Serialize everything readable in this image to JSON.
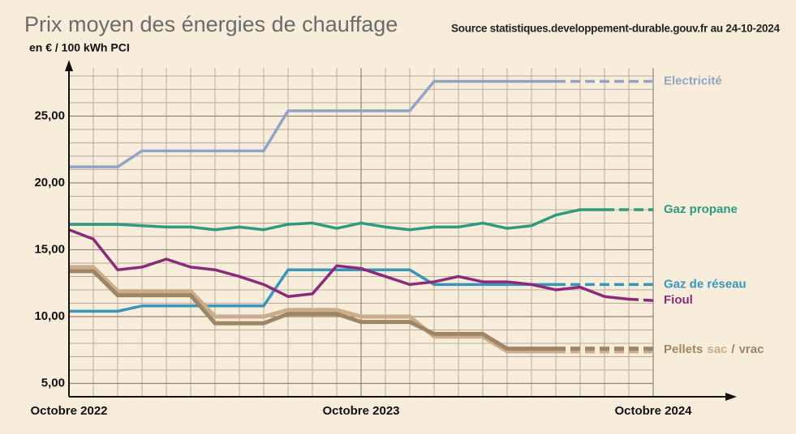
{
  "chart_data": {
    "type": "line",
    "title": "Prix moyen des énergies de chauffage",
    "subtitle": "Source statistiques.developpement-durable.gouv.fr au 24-10-2024",
    "y_label": "en € / 100 kWh PCI",
    "annotations": [
      "Pellets",
      "/"
    ],
    "x": [
      0,
      1,
      2,
      3,
      4,
      5,
      6,
      7,
      8,
      9,
      10,
      11,
      12,
      13,
      14,
      15,
      16,
      17,
      18,
      19,
      20,
      21,
      22,
      23,
      24
    ],
    "xlim": [
      0,
      24
    ],
    "xticks": [
      {
        "value": 0,
        "label": "Octobre 2022"
      },
      {
        "value": 12,
        "label": "Octobre 2023"
      },
      {
        "value": 24,
        "label": "Octobre 2024"
      }
    ],
    "ylim": [
      4,
      28.6
    ],
    "yticks": [
      {
        "value": 5,
        "label": "5,00"
      },
      {
        "value": 10,
        "label": "10,00"
      },
      {
        "value": 15,
        "label": "15,00"
      },
      {
        "value": 20,
        "label": "20,00"
      },
      {
        "value": 25,
        "label": "25,00"
      }
    ],
    "grid": true,
    "series": [
      {
        "name": "Electricité",
        "color": "#8fa4c6",
        "dash_from": 20,
        "values": [
          21.2,
          21.2,
          21.2,
          22.4,
          22.4,
          22.4,
          22.4,
          22.4,
          22.4,
          25.4,
          25.4,
          25.4,
          25.4,
          25.4,
          25.4,
          27.6,
          27.6,
          27.6,
          27.6,
          27.6,
          27.6,
          27.6,
          27.6,
          27.6,
          27.6
        ]
      },
      {
        "name": "Gaz propane",
        "color": "#2e9a80",
        "dash_from": 22,
        "values": [
          16.9,
          16.9,
          16.9,
          16.8,
          16.7,
          16.7,
          16.5,
          16.7,
          16.5,
          16.9,
          17.0,
          16.6,
          17.0,
          16.7,
          16.5,
          16.7,
          16.7,
          17.0,
          16.6,
          16.8,
          17.6,
          18.0,
          18.0,
          18.0,
          18.0
        ]
      },
      {
        "name": "Gaz de réseau",
        "color": "#3a95bd",
        "dash_from": 20,
        "values": [
          10.4,
          10.4,
          10.4,
          10.8,
          10.8,
          10.8,
          10.8,
          10.8,
          10.8,
          13.5,
          13.5,
          13.5,
          13.5,
          13.5,
          13.5,
          12.4,
          12.4,
          12.4,
          12.4,
          12.4,
          12.4,
          12.4,
          12.4,
          12.4,
          12.4
        ]
      },
      {
        "name": "Fioul",
        "color": "#8b2a7a",
        "dash_from": 23,
        "values": [
          16.5,
          15.8,
          13.5,
          13.7,
          14.3,
          13.7,
          13.5,
          13.0,
          12.4,
          11.5,
          11.7,
          13.8,
          13.6,
          13.0,
          12.4,
          12.6,
          13.0,
          12.6,
          12.6,
          12.4,
          12.0,
          12.2,
          11.5,
          11.3,
          11.2
        ]
      },
      {
        "name": "sac",
        "color": "#cbad8c",
        "dash_from": 20,
        "values": [
          13.7,
          13.7,
          11.9,
          11.9,
          11.9,
          11.9,
          10.0,
          10.0,
          10.0,
          10.5,
          10.5,
          10.5,
          10.0,
          10.0,
          10.0,
          8.5,
          8.5,
          8.5,
          7.4,
          7.4,
          7.4,
          7.4,
          7.4,
          7.4,
          7.4
        ]
      },
      {
        "name": "vrac",
        "color": "#a08466",
        "dash_from": 20,
        "values": [
          13.4,
          13.4,
          11.6,
          11.6,
          11.6,
          11.6,
          9.5,
          9.5,
          9.5,
          10.2,
          10.2,
          10.2,
          9.6,
          9.6,
          9.6,
          8.7,
          8.7,
          8.7,
          7.6,
          7.6,
          7.6,
          7.6,
          7.6,
          7.6,
          7.6
        ]
      }
    ]
  }
}
